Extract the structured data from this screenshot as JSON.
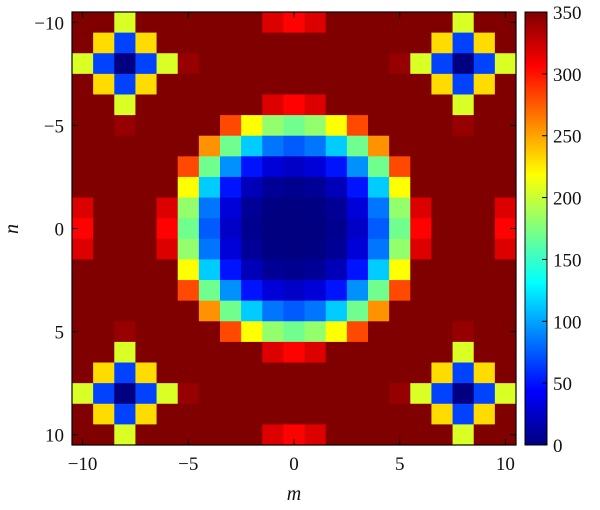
{
  "chart_data": {
    "type": "heatmap",
    "title": "",
    "xlabel": "m",
    "ylabel": "n",
    "x": {
      "min": -10,
      "max": 10,
      "step": 1
    },
    "y": {
      "min": -10,
      "max": 10,
      "step": 1
    },
    "xlim": [
      -10.5,
      10.5
    ],
    "ylim": [
      -10.5,
      10.5
    ],
    "y_inverted": true,
    "value_formula": "256 * (1 - cos(2*pi*(m^2 + n^2)/128)), periodic on m,n with period 16",
    "clim": [
      0,
      350
    ],
    "colormap": "jet",
    "xticks": [
      "−10",
      "−5",
      "0",
      "5",
      "10"
    ],
    "yticks": [
      "−10",
      "−5",
      "0",
      "5",
      "10"
    ],
    "colorbar": {
      "ticks": [
        "0",
        "50",
        "100",
        "150",
        "200",
        "250",
        "300",
        "350"
      ],
      "placement": "right"
    },
    "grid": false
  }
}
